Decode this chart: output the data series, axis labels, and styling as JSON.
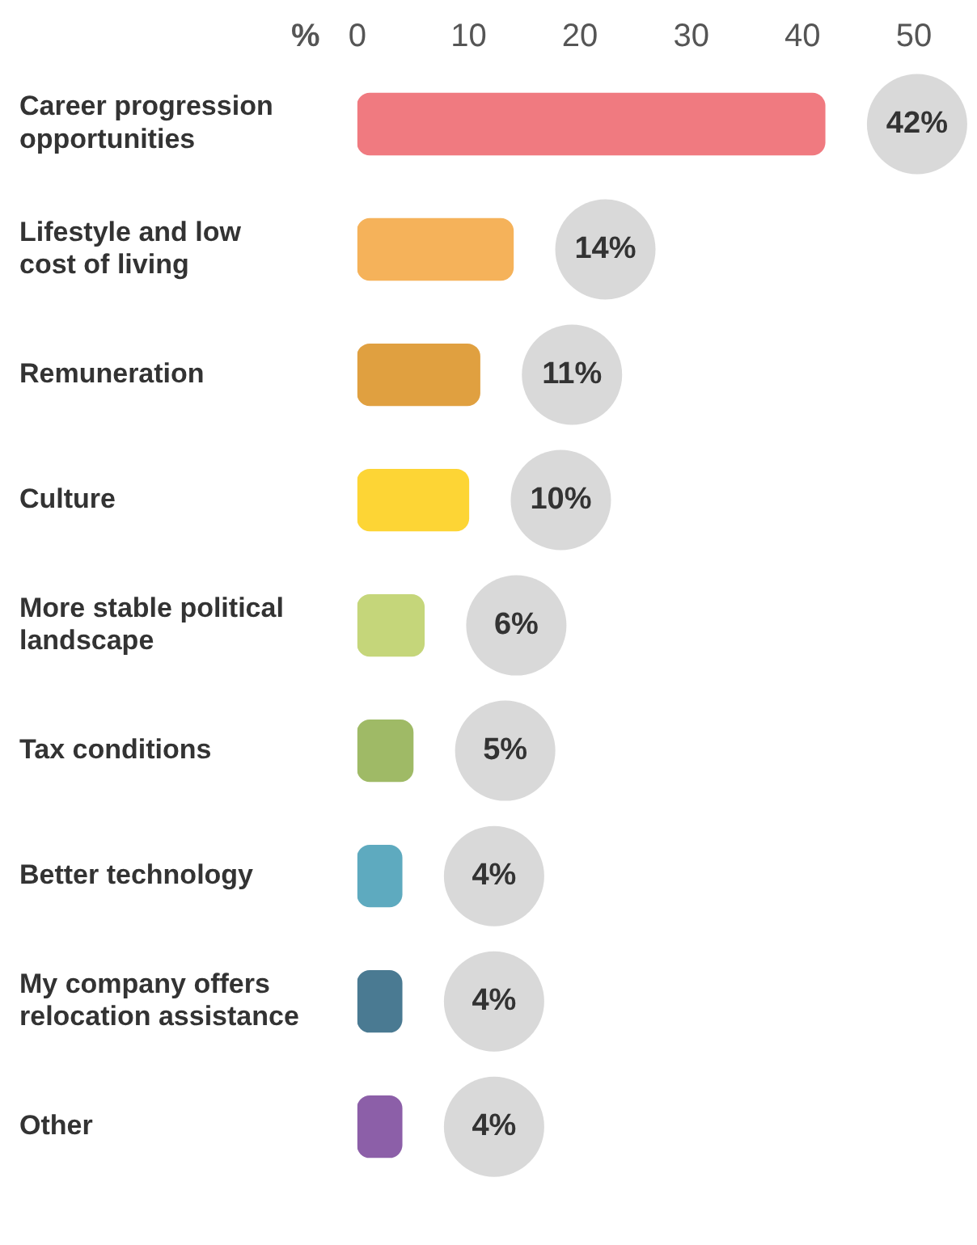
{
  "chart_data": {
    "type": "bar",
    "orientation": "horizontal",
    "xlabel": "%",
    "categories": [
      "Career progression opportunities",
      "Lifestyle and low cost of living",
      "Remuneration",
      "Culture",
      "More stable political landscape",
      "Tax conditions",
      "Better technology",
      "My company offers relocation assistance",
      "Other"
    ],
    "values": [
      42,
      14,
      11,
      10,
      6,
      5,
      4,
      4,
      4
    ],
    "colors": [
      "#f07a80",
      "#f5b25a",
      "#e0a040",
      "#fdd535",
      "#c5d67a",
      "#9fba66",
      "#5eaabf",
      "#4a7a92",
      "#8c5fa8"
    ],
    "value_labels": [
      "42%",
      "14%",
      "11%",
      "10%",
      "6%",
      "5%",
      "4%",
      "4%",
      "4%"
    ],
    "xlim": [
      0,
      50
    ],
    "xticks": [
      0,
      10,
      20,
      30,
      40,
      50
    ],
    "grid": false,
    "legend": false
  }
}
